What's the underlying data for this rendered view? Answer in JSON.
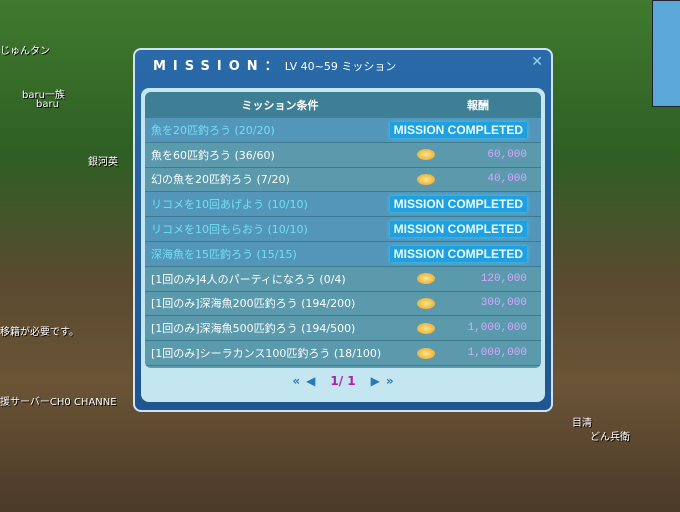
{
  "background": {
    "labels": [
      "じゅんタン",
      "baru一族",
      "baru",
      "銀河英",
      "目清",
      "どん兵衛",
      "移籍が必要です。",
      "援サーバーCH0 CHANNE"
    ]
  },
  "dialog": {
    "title": "MISSION：",
    "subtitle": "LV 40~59 ミッション",
    "close_icon": "close-icon",
    "headers": {
      "condition": "ミッション条件",
      "reward": "報酬"
    },
    "completed_label": "MISSION COMPLETED",
    "rows": [
      {
        "condition": "魚を20匹釣ろう (20/20)",
        "completed": true,
        "reward": ""
      },
      {
        "condition": "魚を60匹釣ろう (36/60)",
        "completed": false,
        "reward": "60,000"
      },
      {
        "condition": "幻の魚を20匹釣ろう (7/20)",
        "completed": false,
        "reward": "40,000"
      },
      {
        "condition": "リコメを10回あげよう (10/10)",
        "completed": true,
        "reward": ""
      },
      {
        "condition": "リコメを10回もらおう (10/10)",
        "completed": true,
        "reward": ""
      },
      {
        "condition": "深海魚を15匹釣ろう (15/15)",
        "completed": true,
        "reward": ""
      },
      {
        "condition": "[1回のみ]4人のパーティになろう (0/4)",
        "completed": false,
        "reward": "120,000"
      },
      {
        "condition": "[1回のみ]深海魚200匹釣ろう (194/200)",
        "completed": false,
        "reward": "300,000"
      },
      {
        "condition": "[1回のみ]深海魚500匹釣ろう (194/500)",
        "completed": false,
        "reward": "1,000,000"
      },
      {
        "condition": "[1回のみ]シーラカンス100匹釣ろう (18/100)",
        "completed": false,
        "reward": "1,000,000"
      }
    ],
    "pager": {
      "first": "«",
      "prev": "◀",
      "page": "1/ 1",
      "next": "▶",
      "last": "»"
    }
  }
}
